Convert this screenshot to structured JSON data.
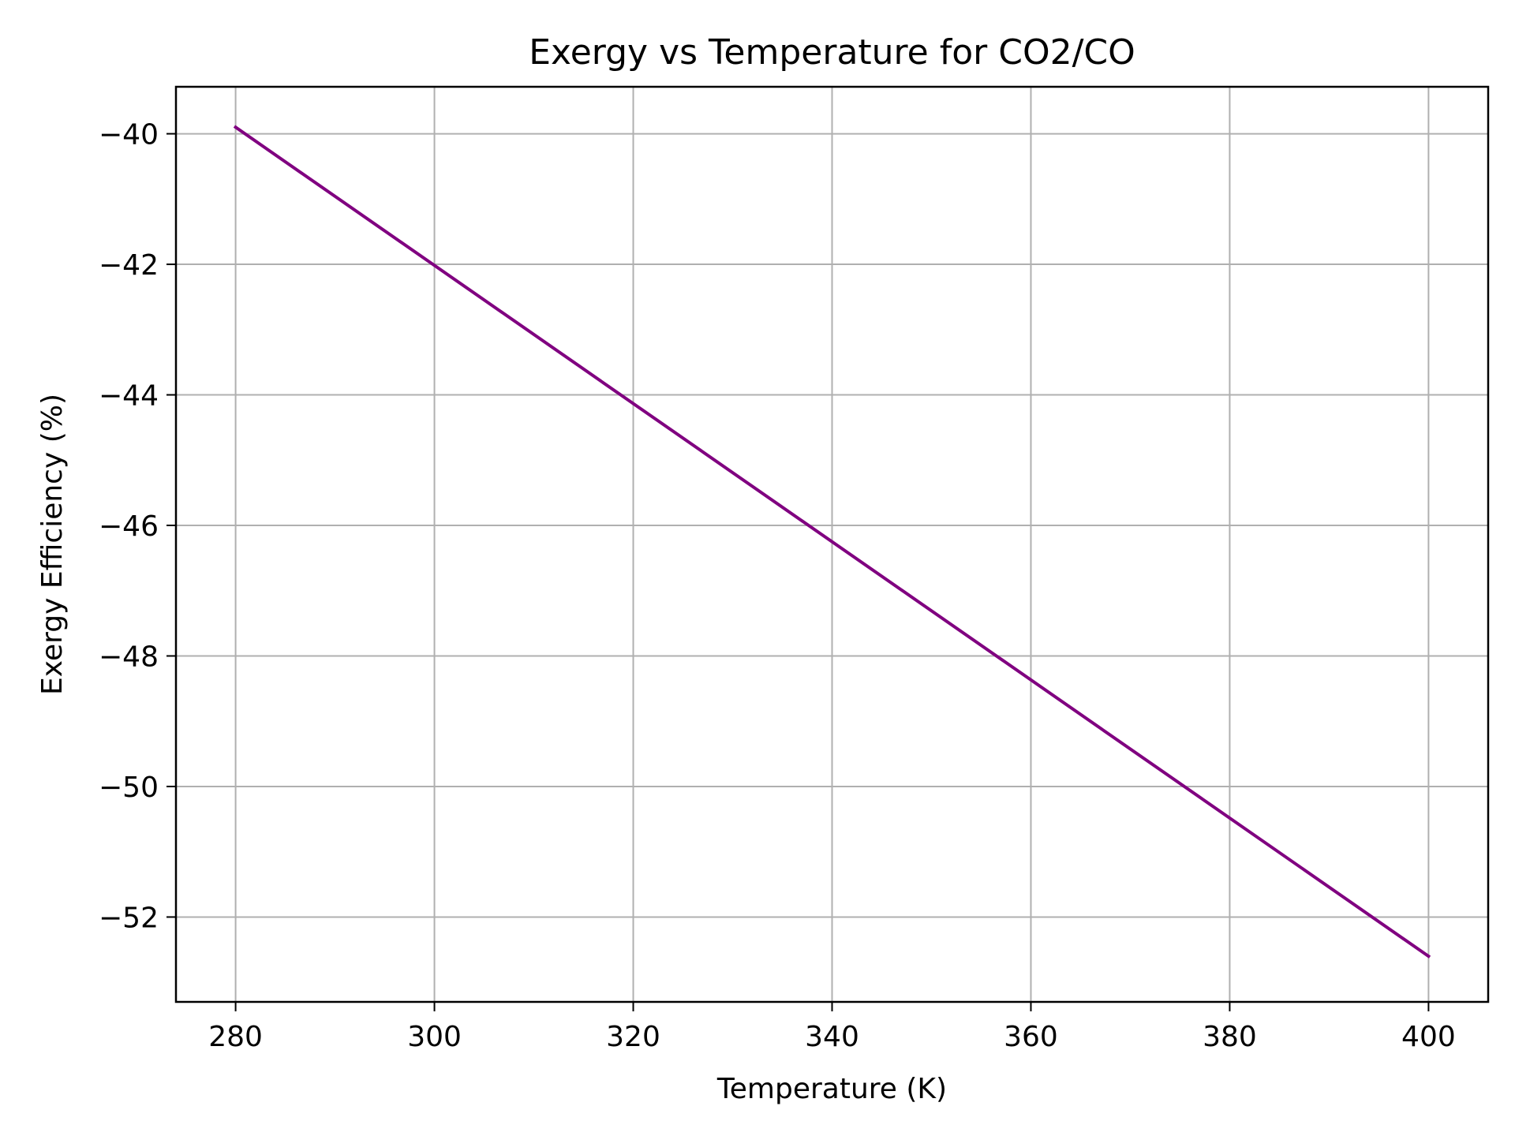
{
  "chart_data": {
    "type": "line",
    "title": "Exergy vs Temperature for CO2/CO",
    "xlabel": "Temperature (K)",
    "ylabel": "Exergy Efficiency (%)",
    "xlim": [
      274,
      406
    ],
    "ylim": [
      -53.3,
      -39.28
    ],
    "xticks": [
      280,
      300,
      320,
      340,
      360,
      380,
      400
    ],
    "yticks": [
      -40,
      -42,
      -44,
      -46,
      -48,
      -50,
      -52
    ],
    "xtick_labels": [
      "280",
      "300",
      "320",
      "340",
      "360",
      "380",
      "400"
    ],
    "ytick_labels": [
      "−40",
      "−42",
      "−44",
      "−46",
      "−48",
      "−50",
      "−52"
    ],
    "grid": true,
    "series": [
      {
        "color": "#800080",
        "x": [
          280,
          400
        ],
        "y": [
          -39.9,
          -52.6
        ]
      }
    ]
  }
}
